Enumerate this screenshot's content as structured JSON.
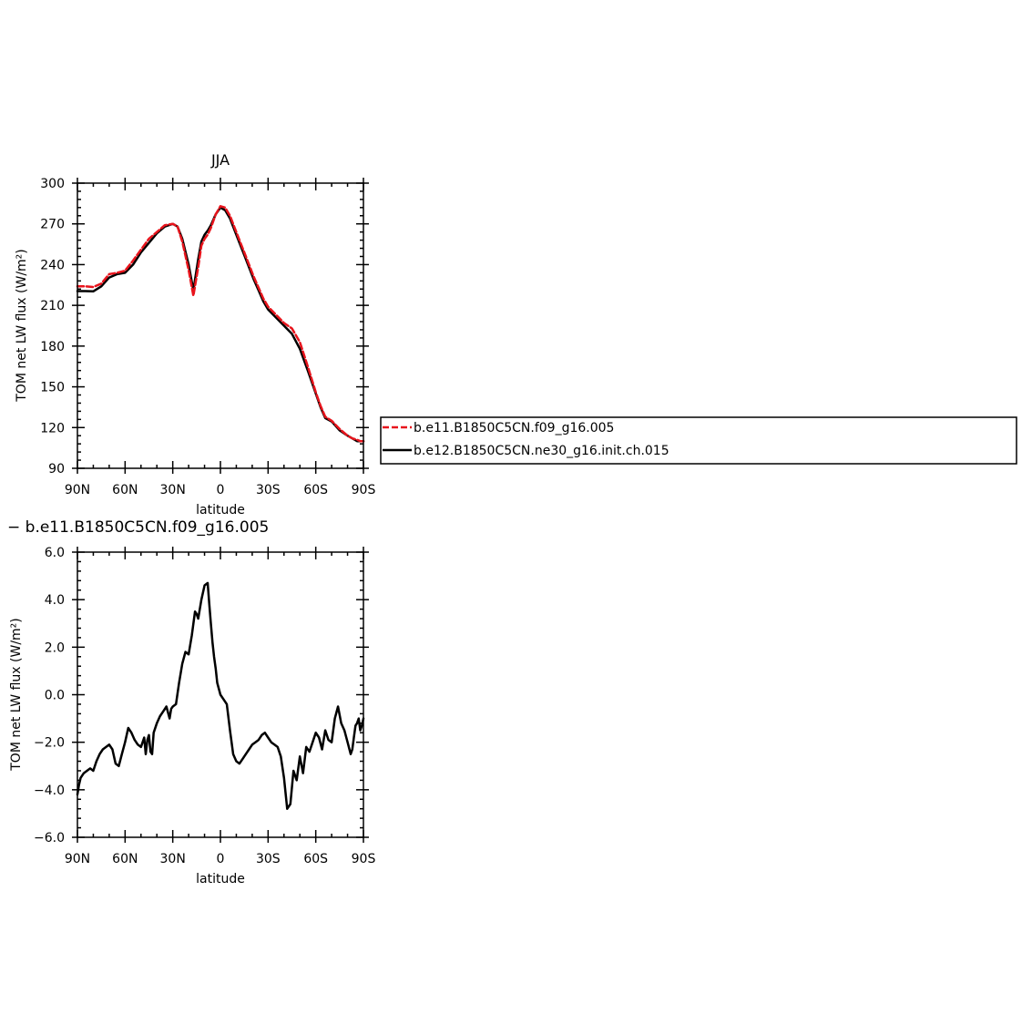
{
  "chart_data": [
    {
      "type": "line",
      "title": "JJA",
      "xlabel": "latitude",
      "ylabel": "TOM net LW flux (W/m²)",
      "xlim": [
        90,
        -90
      ],
      "ylim": [
        90,
        300
      ],
      "x_ticks": [
        90,
        60,
        30,
        0,
        -30,
        -60,
        -90
      ],
      "x_tick_labels": [
        "90N",
        "60N",
        "30N",
        "0",
        "30S",
        "60S",
        "90S"
      ],
      "y_ticks": [
        90,
        120,
        150,
        180,
        210,
        240,
        270,
        300
      ],
      "y_tick_labels": [
        "90",
        "120",
        "150",
        "180",
        "210",
        "240",
        "270",
        "300"
      ],
      "legend": {
        "position": "right",
        "entries": [
          "b.e11.B1850C5CN.f09_g16.005",
          "b.e12.B1850C5CN.ne30_g16.init.ch.015"
        ]
      },
      "series": [
        {
          "name": "b.e11.B1850C5CN.f09_g16.005",
          "color": "#e8141c",
          "dash": true,
          "x": [
            90,
            85,
            80,
            75,
            70,
            65,
            60,
            55,
            50,
            45,
            40,
            35,
            30,
            27,
            24,
            20,
            17,
            14,
            12,
            10,
            8,
            6,
            3,
            0,
            -3,
            -6,
            -9,
            -12,
            -15,
            -18,
            -21,
            -24,
            -27,
            -30,
            -35,
            -40,
            -45,
            -50,
            -55,
            -60,
            -63,
            -66,
            -70,
            -75,
            -80,
            -83,
            -86,
            -88,
            -90
          ],
          "y": [
            224,
            224,
            223.5,
            226,
            233,
            234,
            235.5,
            243,
            251,
            259,
            264,
            269,
            270,
            268,
            257,
            236,
            217,
            238,
            254,
            259,
            262,
            267,
            277,
            283,
            282,
            276,
            267,
            258,
            249,
            240,
            231,
            223,
            215,
            209,
            203,
            197,
            193,
            183,
            165,
            146,
            136,
            128,
            125,
            119,
            114,
            112,
            111,
            110,
            110
          ]
        },
        {
          "name": "b.e12.B1850C5CN.ne30_g16.init.ch.015",
          "color": "#000000",
          "dash": false,
          "x": [
            90,
            85,
            80,
            75,
            70,
            65,
            60,
            55,
            50,
            45,
            40,
            35,
            30,
            27,
            24,
            20,
            17,
            14,
            12,
            10,
            8,
            6,
            3,
            0,
            -3,
            -6,
            -9,
            -12,
            -15,
            -18,
            -21,
            -24,
            -27,
            -30,
            -35,
            -40,
            -45,
            -50,
            -55,
            -60,
            -63,
            -66,
            -70,
            -75,
            -80,
            -83,
            -86,
            -88,
            -90
          ],
          "y": [
            220.5,
            220.5,
            220.3,
            224,
            230.5,
            233,
            234,
            240,
            249,
            256,
            263,
            268,
            270,
            268,
            259,
            240,
            221,
            244,
            257,
            262,
            265,
            269,
            277,
            282,
            280,
            274,
            265,
            256,
            247,
            238,
            229,
            221,
            213,
            207,
            201,
            195,
            189,
            178,
            162,
            145,
            135,
            127,
            124.5,
            118,
            114,
            112,
            110,
            110,
            110
          ]
        }
      ]
    },
    {
      "type": "line",
      "title": "− b.e11.B1850C5CN.f09_g16.005",
      "xlabel": "latitude",
      "ylabel": "TOM net LW flux (W/m²)",
      "xlim": [
        90,
        -90
      ],
      "ylim": [
        -6,
        6
      ],
      "x_ticks": [
        90,
        60,
        30,
        0,
        -30,
        -60,
        -90
      ],
      "x_tick_labels": [
        "90N",
        "60N",
        "30N",
        "0",
        "30S",
        "60S",
        "90S"
      ],
      "y_ticks": [
        -6,
        -4,
        -2,
        0,
        2,
        4,
        6
      ],
      "y_tick_labels": [
        "−6.0",
        "−4.0",
        "−2.0",
        "0.0",
        "2.0",
        "4.0",
        "6.0"
      ],
      "series": [
        {
          "color": "#000000",
          "dash": false,
          "x": [
            90,
            89,
            88,
            86,
            84,
            82,
            80,
            78,
            76,
            74,
            72,
            70,
            68,
            66,
            64,
            62,
            60,
            58,
            56,
            54,
            52,
            50,
            48,
            47,
            46,
            45,
            44,
            43,
            42,
            40,
            38,
            36,
            34,
            32,
            31,
            30,
            28,
            26,
            24,
            22,
            20,
            18,
            16,
            15,
            14,
            12,
            10,
            8,
            7,
            6,
            5,
            4,
            3,
            2,
            0,
            -2,
            -4,
            -6,
            -8,
            -10,
            -12,
            -14,
            -16,
            -18,
            -20,
            -22,
            -24,
            -26,
            -28,
            -30,
            -32,
            -34,
            -36,
            -38,
            -40,
            -42,
            -44,
            -46,
            -48,
            -50,
            -52,
            -54,
            -56,
            -58,
            -60,
            -62,
            -64,
            -66,
            -68,
            -70,
            -72,
            -74,
            -76,
            -78,
            -80,
            -82,
            -83,
            -84,
            -85,
            -86,
            -87,
            -88,
            -89,
            -90
          ],
          "y": [
            -4.2,
            -3.8,
            -3.5,
            -3.3,
            -3.2,
            -3.1,
            -3.2,
            -2.8,
            -2.5,
            -2.3,
            -2.2,
            -2.1,
            -2.3,
            -2.9,
            -3.0,
            -2.5,
            -2.0,
            -1.4,
            -1.6,
            -1.9,
            -2.1,
            -2.2,
            -1.8,
            -2.5,
            -1.9,
            -1.7,
            -2.4,
            -2.5,
            -1.6,
            -1.2,
            -0.9,
            -0.7,
            -0.5,
            -1.0,
            -0.6,
            -0.5,
            -0.4,
            0.5,
            1.3,
            1.8,
            1.7,
            2.5,
            3.5,
            3.4,
            3.2,
            4.0,
            4.6,
            4.7,
            3.8,
            3.0,
            2.2,
            1.6,
            1.1,
            0.5,
            0.0,
            -0.2,
            -0.4,
            -1.5,
            -2.5,
            -2.8,
            -2.9,
            -2.7,
            -2.5,
            -2.3,
            -2.1,
            -2.0,
            -1.9,
            -1.7,
            -1.6,
            -1.8,
            -2.0,
            -2.1,
            -2.2,
            -2.6,
            -3.5,
            -4.8,
            -4.6,
            -3.2,
            -3.6,
            -2.6,
            -3.3,
            -2.2,
            -2.4,
            -2.0,
            -1.6,
            -1.8,
            -2.3,
            -1.5,
            -1.9,
            -2.0,
            -1.0,
            -0.5,
            -1.2,
            -1.5,
            -2.0,
            -2.5,
            -2.3,
            -1.8,
            -1.3,
            -1.2,
            -1.0,
            -1.5,
            -1.3,
            -1.0
          ]
        }
      ]
    }
  ]
}
